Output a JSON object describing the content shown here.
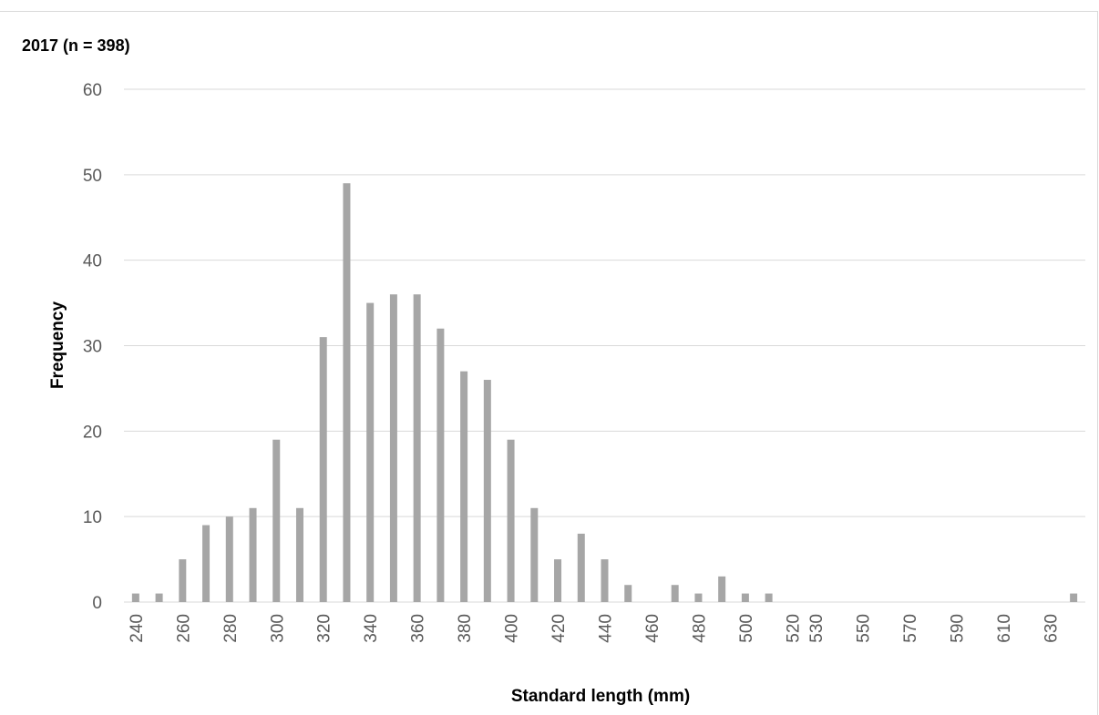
{
  "chart_data": {
    "type": "bar",
    "title": "2017 (n = 398)",
    "xlabel": "Standard length (mm)",
    "ylabel": "Frequency",
    "ylim": [
      0,
      60
    ],
    "yticks": [
      0,
      10,
      20,
      30,
      40,
      50,
      60
    ],
    "grid": true,
    "legend": "none",
    "bar_color": "#a6a6a6",
    "categories": [
      240,
      250,
      260,
      270,
      280,
      290,
      300,
      310,
      320,
      330,
      340,
      350,
      360,
      370,
      380,
      390,
      400,
      410,
      420,
      430,
      440,
      450,
      460,
      470,
      480,
      490,
      500,
      510,
      520,
      530,
      540,
      550,
      560,
      570,
      580,
      590,
      600,
      610,
      620,
      630,
      640
    ],
    "tick_labels": [
      "240",
      "",
      "260",
      "",
      "280",
      "",
      "300",
      "",
      "320",
      "",
      "340",
      "",
      "360",
      "",
      "380",
      "",
      "400",
      "",
      "420",
      "",
      "440",
      "",
      "460",
      "",
      "480",
      "",
      "500",
      "",
      "520",
      "530",
      "",
      "550",
      "",
      "570",
      "",
      "590",
      "",
      "610",
      "",
      "630",
      ""
    ],
    "values": [
      1,
      1,
      5,
      9,
      10,
      11,
      19,
      11,
      31,
      49,
      35,
      36,
      36,
      32,
      27,
      26,
      19,
      11,
      5,
      8,
      5,
      2,
      0,
      2,
      1,
      3,
      1,
      1,
      0,
      0,
      0,
      0,
      0,
      0,
      0,
      0,
      0,
      0,
      0,
      0,
      1
    ]
  }
}
